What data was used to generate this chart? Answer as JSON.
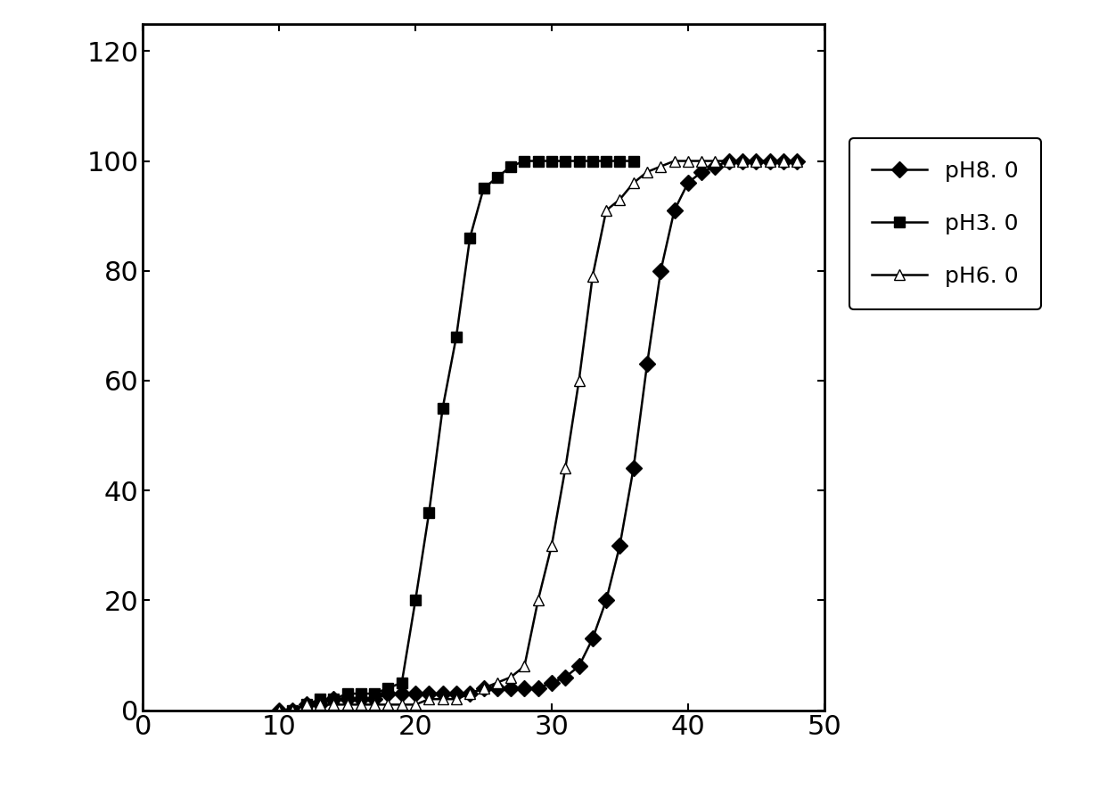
{
  "pH8_x": [
    10,
    11,
    12,
    13,
    14,
    15,
    16,
    17,
    18,
    19,
    20,
    21,
    22,
    23,
    24,
    25,
    26,
    27,
    28,
    29,
    30,
    31,
    32,
    33,
    34,
    35,
    36,
    37,
    38,
    39,
    40,
    41,
    42,
    43,
    44,
    45,
    46,
    47,
    48
  ],
  "pH8_y": [
    0,
    0,
    1,
    1,
    2,
    2,
    2,
    2,
    3,
    3,
    3,
    3,
    3,
    3,
    3,
    4,
    4,
    4,
    4,
    4,
    5,
    6,
    8,
    13,
    20,
    30,
    44,
    63,
    80,
    91,
    96,
    98,
    99,
    100,
    100,
    100,
    100,
    100,
    100
  ],
  "pH3_x": [
    11,
    12,
    13,
    14,
    15,
    16,
    17,
    18,
    19,
    20,
    21,
    22,
    23,
    24,
    25,
    26,
    27,
    28,
    29,
    30,
    31,
    32,
    33,
    34,
    35,
    36
  ],
  "pH3_y": [
    0,
    1,
    2,
    2,
    3,
    3,
    3,
    4,
    5,
    20,
    36,
    55,
    68,
    86,
    95,
    97,
    99,
    100,
    100,
    100,
    100,
    100,
    100,
    100,
    100,
    100
  ],
  "pH6_x": [
    10,
    11,
    12,
    13,
    14,
    15,
    16,
    17,
    18,
    19,
    20,
    21,
    22,
    23,
    24,
    25,
    26,
    27,
    28,
    29,
    30,
    31,
    32,
    33,
    34,
    35,
    36,
    37,
    38,
    39,
    40,
    41,
    42,
    43,
    44,
    45,
    46,
    47,
    48
  ],
  "pH6_y": [
    0,
    0,
    1,
    1,
    1,
    1,
    1,
    1,
    1,
    1,
    1,
    2,
    2,
    2,
    3,
    4,
    5,
    6,
    8,
    20,
    30,
    44,
    60,
    79,
    91,
    93,
    96,
    98,
    99,
    100,
    100,
    100,
    100,
    100,
    100,
    100,
    100,
    100,
    100
  ],
  "xlim": [
    0,
    50
  ],
  "ylim": [
    0,
    125
  ],
  "xticks": [
    0,
    10,
    20,
    30,
    40,
    50
  ],
  "yticks": [
    0,
    20,
    40,
    60,
    80,
    100,
    120
  ],
  "legend_labels": [
    "pH8. 0",
    "pH3. 0",
    "pH6. 0"
  ],
  "line_color": "#000000",
  "background_color": "#ffffff",
  "tick_fontsize": 22,
  "legend_fontsize": 18,
  "marker_size": 9,
  "line_width": 1.8
}
